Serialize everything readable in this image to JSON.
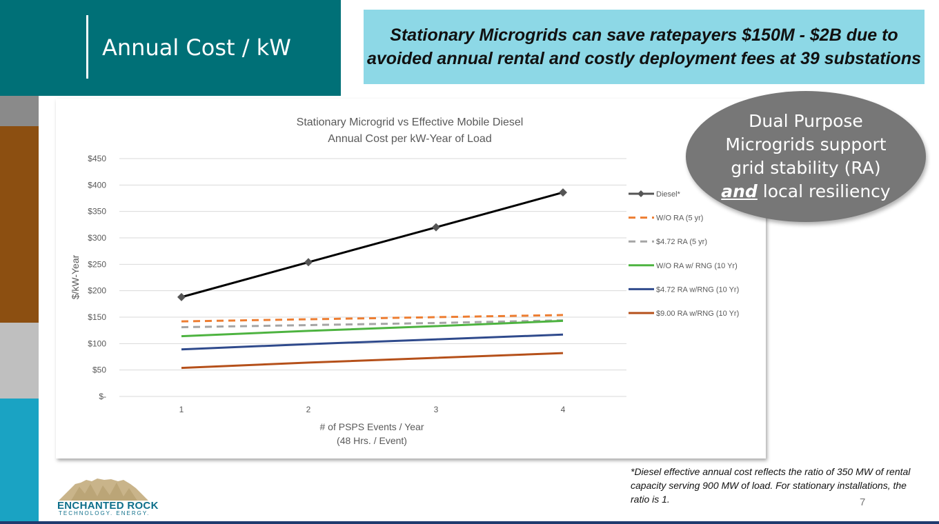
{
  "slide": {
    "title": "Annual Cost / kW",
    "headline_line1": "Stationary Microgrids can save ratepayers $150M - $2B due to",
    "headline_line2": "avoided annual rental and costly deployment fees at 39 substations",
    "callout_line1": "Dual Purpose",
    "callout_line2": "Microgrids support",
    "callout_line3": "grid stability (RA)",
    "callout_emph": "and",
    "callout_rest": " local resiliency",
    "footnote": "*Diesel effective annual cost reflects the ratio of 350 MW of rental capacity serving 900 MW of load. For stationary installations, the ratio is 1.",
    "page_number": "7",
    "logo_name": "ENCHANTED ROCK",
    "logo_tagline": "TECHNOLOGY. ENERGY."
  },
  "colors": {
    "title_bg": "#007077",
    "headline_bg": "#8dd8e6",
    "callout_bg": "#777777"
  },
  "chart_data": {
    "type": "line",
    "title_line1": "Stationary Microgrid vs Effective Mobile Diesel",
    "title_line2": "Annual Cost per kW-Year of Load",
    "xlabel_line1": "# of PSPS Events / Year",
    "xlabel_line2": "(48 Hrs. / Event)",
    "ylabel": "$/kW-Year",
    "x": [
      1,
      2,
      3,
      4
    ],
    "ylim": [
      0,
      450
    ],
    "yticks": [
      0,
      50,
      100,
      150,
      200,
      250,
      300,
      350,
      400,
      450
    ],
    "ytick_labels": [
      "$-",
      "$50",
      "$100",
      "$150",
      "$200",
      "$250",
      "$300",
      "$350",
      "$400",
      "$450"
    ],
    "grid": true,
    "legend_position": "right",
    "series": [
      {
        "name": "Diesel*",
        "values": [
          188,
          254,
          320,
          386
        ],
        "color": "#000000",
        "dash": "solid",
        "markers": true,
        "legend_color": "#555555"
      },
      {
        "name": "W/O RA (5 yr)",
        "values": [
          142,
          146,
          150,
          154
        ],
        "color": "#ed7d31",
        "dash": "dashed",
        "markers": false,
        "legend_color": "#ed7d31"
      },
      {
        "name": "$4.72 RA (5 yr)",
        "values": [
          131,
          135,
          139,
          144
        ],
        "color": "#a5a5a5",
        "dash": "dashed",
        "markers": false,
        "legend_color": "#a5a5a5"
      },
      {
        "name": "W/O RA w/ RNG (10 Yr)",
        "values": [
          114,
          124,
          133,
          143
        ],
        "color": "#4db340",
        "dash": "solid",
        "markers": false,
        "legend_color": "#4db340"
      },
      {
        "name": "$4.72 RA w/RNG (10 Yr)",
        "values": [
          89,
          99,
          108,
          117
        ],
        "color": "#2f4a8c",
        "dash": "solid",
        "markers": false,
        "legend_color": "#2f4a8c"
      },
      {
        "name": "$9.00 RA w/RNG (10 Yr)",
        "values": [
          54,
          64,
          73,
          82
        ],
        "color": "#b5501a",
        "dash": "solid",
        "markers": false,
        "legend_color": "#b5501a"
      }
    ]
  }
}
